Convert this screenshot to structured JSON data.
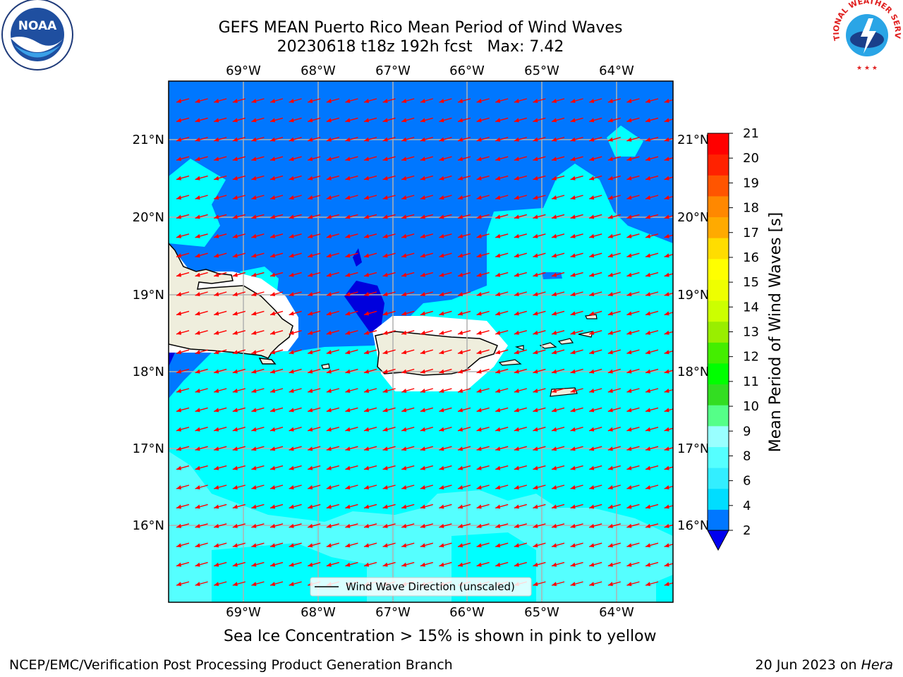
{
  "title_line1": "GEFS MEAN Puerto Rico Mean Period of Wind Waves",
  "title_line2": "20230618 t18z 192h fcst   Max: 7.42",
  "noaa_logo": {
    "center_text": "NOAA",
    "ring_text": "NATIONAL OCEANIC AND ATMOSPHERIC ADMINISTRATION · U.S. DEPARTMENT OF COMMERCE ·"
  },
  "nws_logo": {
    "ring_text": "NATIONAL WEATHER SERVICE"
  },
  "lon_labels": [
    "69°W",
    "68°W",
    "67°W",
    "66°W",
    "65°W",
    "64°W"
  ],
  "lat_labels": [
    "21°N",
    "20°N",
    "19°N",
    "18°N",
    "17°N",
    "16°N"
  ],
  "colorbar": {
    "label": "Mean Period of Wind Waves [s]",
    "ticks": [
      "2",
      "4",
      "6",
      "8",
      "9",
      "10",
      "11",
      "12",
      "13",
      "14",
      "15",
      "16",
      "17",
      "18",
      "19",
      "20",
      "21"
    ],
    "colors": [
      "#0077ff",
      "#00ddff",
      "#33eeff",
      "#55ffff",
      "#99ffff",
      "#55ff88",
      "#33dd22",
      "#00ff00",
      "#44ee00",
      "#99ee00",
      "#ccff00",
      "#eeff00",
      "#ffff00",
      "#ffdd00",
      "#ffaa00",
      "#ff8800",
      "#ff5500",
      "#ff2200",
      "#ff0000"
    ],
    "extend_color": "#0000ee"
  },
  "legend_text": "Wind Wave Direction (unscaled)",
  "caption": "Sea Ice Concentration > 15% is shown in pink to yellow",
  "footer_left": "NCEP/EMC/Verification Post Processing Product Generation Branch",
  "footer_date": "20 Jun 2023 on ",
  "footer_host": "Hera",
  "colors": {
    "deep_blue": "#0077ff",
    "cyan": "#00ffff",
    "light_cyan": "#55ffff",
    "dark_blue": "#0000dd",
    "land": "#efeedd",
    "arrow": "#ff0000",
    "grid": "#b0b0b0"
  }
}
